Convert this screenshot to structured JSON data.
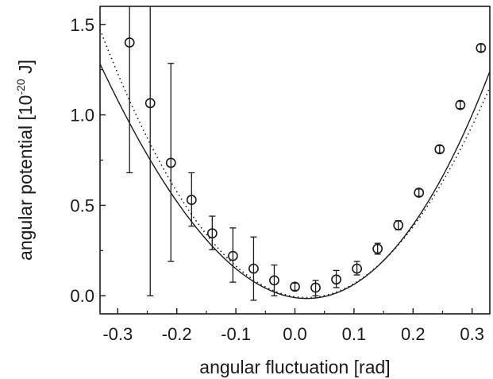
{
  "chart_data": {
    "type": "scatter",
    "xlabel": "angular fluctuation [rad]",
    "ylabel_parts": {
      "pre": "angular potential [10",
      "exp": "-20",
      "post": " J]"
    },
    "xlim": [
      -0.33,
      0.33
    ],
    "ylim": [
      -0.1,
      1.6
    ],
    "xticks": [
      -0.3,
      -0.2,
      -0.1,
      0.0,
      0.1,
      0.2,
      0.3
    ],
    "xtick_labels": [
      "-0.3",
      "-0.2",
      "-0.1",
      "0.0",
      "0.1",
      "0.2",
      "0.3"
    ],
    "yticks": [
      0.0,
      0.5,
      1.0,
      1.5
    ],
    "ytick_labels": [
      "0.0",
      "0.5",
      "1.0",
      "1.5"
    ],
    "grid": false,
    "series": [
      {
        "kind": "data",
        "marker": "open-circle",
        "points": [
          {
            "x": -0.28,
            "y": 1.4,
            "err_low": 0.68,
            "err_high": 1.62
          },
          {
            "x": -0.245,
            "y": 1.065,
            "err_low": 0.0,
            "err_high": 1.62
          },
          {
            "x": -0.21,
            "y": 0.735,
            "err_low": 0.19,
            "err_high": 1.285
          },
          {
            "x": -0.175,
            "y": 0.53,
            "err_low": 0.385,
            "err_high": 0.68
          },
          {
            "x": -0.14,
            "y": 0.345,
            "err_low": 0.255,
            "err_high": 0.44
          },
          {
            "x": -0.105,
            "y": 0.22,
            "err_low": 0.075,
            "err_high": 0.375
          },
          {
            "x": -0.07,
            "y": 0.15,
            "err_low": -0.025,
            "err_high": 0.325
          },
          {
            "x": -0.035,
            "y": 0.085,
            "err_low": 0.0,
            "err_high": 0.17
          },
          {
            "x": 0.0,
            "y": 0.05,
            "err_low": 0.03,
            "err_high": 0.07
          },
          {
            "x": 0.035,
            "y": 0.045,
            "err_low": 0.0,
            "err_high": 0.085
          },
          {
            "x": 0.07,
            "y": 0.09,
            "err_low": 0.045,
            "err_high": 0.14
          },
          {
            "x": 0.105,
            "y": 0.15,
            "err_low": 0.115,
            "err_high": 0.19
          },
          {
            "x": 0.14,
            "y": 0.26,
            "err_low": 0.23,
            "err_high": 0.29
          },
          {
            "x": 0.175,
            "y": 0.39,
            "err_low": 0.365,
            "err_high": 0.415
          },
          {
            "x": 0.21,
            "y": 0.57,
            "err_low": 0.55,
            "err_high": 0.59
          },
          {
            "x": 0.245,
            "y": 0.81,
            "err_low": 0.79,
            "err_high": 0.83
          },
          {
            "x": 0.28,
            "y": 1.055,
            "err_low": 1.035,
            "err_high": 1.075
          },
          {
            "x": 0.315,
            "y": 1.37,
            "err_low": 1.35,
            "err_high": 1.39
          }
        ]
      },
      {
        "kind": "fit",
        "style": "solid",
        "model": "cubic",
        "coefficients": {
          "a": 11.9,
          "b": 3.75,
          "x0": 0.02,
          "c": -0.015
        }
      },
      {
        "kind": "fit",
        "style": "dotted",
        "model": "parabola",
        "coefficients": {
          "a": 12.1,
          "b": 0,
          "x0": 0.02,
          "c": -0.01
        }
      }
    ]
  }
}
